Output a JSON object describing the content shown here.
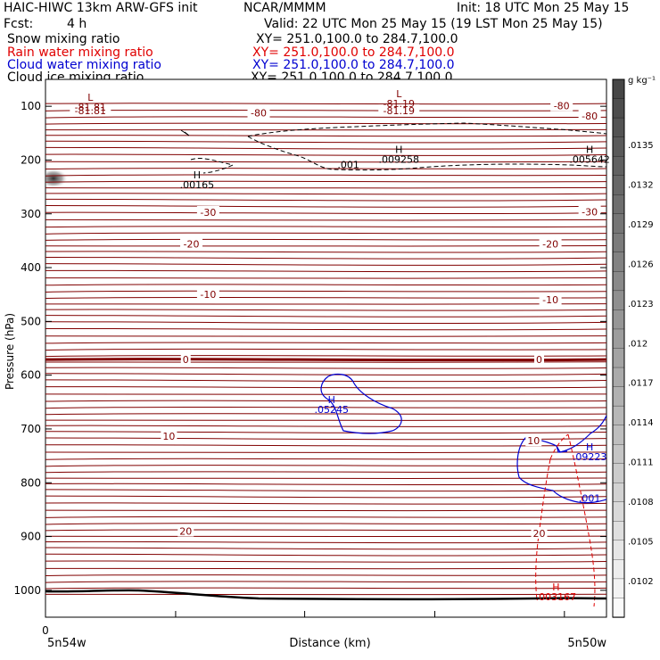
{
  "header": {
    "model": "HAIC-HIWC 13km ARW-GFS init",
    "org": "NCAR/MMMM",
    "init": "Init: 18 UTC Mon 25 May 15",
    "fcst_label": "Fcst:",
    "fcst_value": "4 h",
    "valid": "Valid: 22 UTC Mon 25 May 15 (19 LST Mon 25 May 15)"
  },
  "fields": [
    {
      "name": "Snow mixing ratio",
      "xy": "XY= 251.0,100.0 to 284.7,100.0",
      "color": "#000000"
    },
    {
      "name": "Rain water mixing ratio",
      "xy": "XY= 251.0,100.0 to 284.7,100.0",
      "color": "#e00000"
    },
    {
      "name": "Cloud water mixing ratio",
      "xy": "XY= 251.0,100.0 to 284.7,100.0",
      "color": "#0000d0"
    },
    {
      "name": "Cloud ice mixing ratio",
      "xy": "XY= 251.0,100.0 to 284.7,100.0",
      "color": "#000000"
    }
  ],
  "colors": {
    "temperature": "#800000",
    "cloud_water": "#0000d0",
    "rain": "#e00000",
    "ice": "#000000"
  },
  "chart_data": {
    "type": "cross-section",
    "ylabel": "Pressure (hPa)",
    "xlabel": "Distance (km)",
    "x_origin_label": "0",
    "x_left_label": "5n54w",
    "x_right_label": "5n50w",
    "yticks": [
      100,
      200,
      300,
      400,
      500,
      600,
      700,
      800,
      900,
      1000
    ],
    "ylim": [
      1050,
      50
    ],
    "colorbar": {
      "unit": "g kg⁻¹",
      "labels": [
        ".0135",
        ".0132",
        ".0129",
        ".0126",
        ".0123",
        ".012",
        ".0117",
        ".0114",
        ".0111",
        ".0108",
        ".0105",
        ".0102"
      ]
    },
    "temperature_labels": [
      {
        "text": "-81.81",
        "p": 108,
        "d": 0.08
      },
      {
        "text": "-80",
        "p": 112,
        "d": 0.38
      },
      {
        "text": "-81.19",
        "p": 108,
        "d": 0.63
      },
      {
        "text": "-80",
        "p": 99,
        "d": 0.92
      },
      {
        "text": "-80",
        "p": 118,
        "d": 0.97
      },
      {
        "text": "-30",
        "p": 297,
        "d": 0.29
      },
      {
        "text": "-30",
        "p": 296,
        "d": 0.97
      },
      {
        "text": "-20",
        "p": 356,
        "d": 0.26
      },
      {
        "text": "-20",
        "p": 356,
        "d": 0.9
      },
      {
        "text": "-10",
        "p": 450,
        "d": 0.29
      },
      {
        "text": "-10",
        "p": 460,
        "d": 0.9
      },
      {
        "text": "0",
        "p": 571,
        "d": 0.25
      },
      {
        "text": "0",
        "p": 571,
        "d": 0.88
      },
      {
        "text": "10",
        "p": 713,
        "d": 0.22
      },
      {
        "text": "10",
        "p": 722,
        "d": 0.87
      },
      {
        "text": "20",
        "p": 890,
        "d": 0.25
      },
      {
        "text": "20",
        "p": 894,
        "d": 0.88
      }
    ],
    "extrema_labels": [
      {
        "kind": "L",
        "value": "-81.81",
        "p": 90,
        "d": 0.08,
        "color": "#800000"
      },
      {
        "kind": "L",
        "value": "-81.19",
        "p": 83,
        "d": 0.63,
        "color": "#800000"
      },
      {
        "kind": "H",
        "value": ".00165",
        "p": 234,
        "d": 0.27,
        "color": "#000000"
      },
      {
        "kind": "H",
        "value": ".009258",
        "p": 187,
        "d": 0.63,
        "color": "#000000"
      },
      {
        "kind": "H",
        "value": ".005642",
        "p": 187,
        "d": 0.97,
        "color": "#000000"
      },
      {
        "kind": "H",
        "value": ".05245",
        "p": 652,
        "d": 0.51,
        "color": "#0000d0"
      },
      {
        "kind": "H",
        "value": ".09223",
        "p": 740,
        "d": 0.97,
        "color": "#0000d0"
      },
      {
        "kind": "H",
        "value": ".003167",
        "p": 1000,
        "d": 0.91,
        "color": "#e00000"
      }
    ],
    "contour_labels": [
      {
        "text": ".001",
        "p": 215,
        "d": 0.54,
        "color": "#000000"
      },
      {
        "text": ".001",
        "p": 835,
        "d": 0.97,
        "color": "#0000d0"
      }
    ]
  }
}
